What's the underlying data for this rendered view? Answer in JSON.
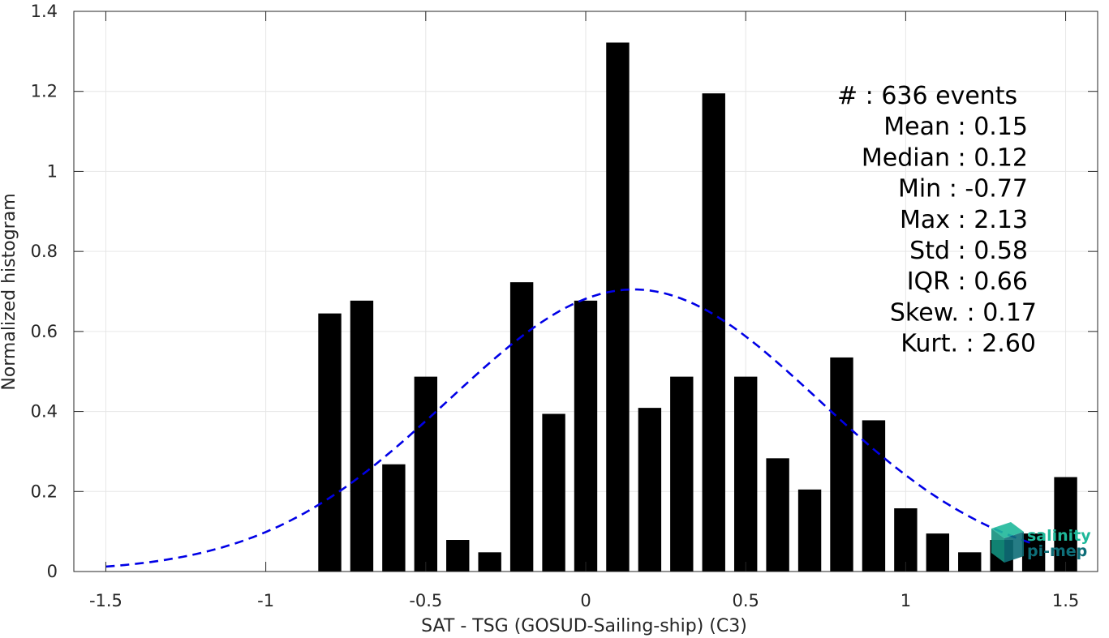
{
  "chart_data": {
    "type": "bar",
    "xlabel": "SAT - TSG (GOSUD-Sailing-ship) (C3)",
    "ylabel": "Normalized histogram",
    "xlim": [
      -1.6,
      1.6
    ],
    "ylim": [
      0,
      1.4
    ],
    "xticks": [
      -1.5,
      -1,
      -0.5,
      0,
      0.5,
      1,
      1.5
    ],
    "xtick_labels": [
      "-1.5",
      "-1",
      "-0.5",
      "0",
      "0.5",
      "1",
      "1.5"
    ],
    "yticks": [
      0,
      0.2,
      0.4,
      0.6,
      0.8,
      1,
      1.2,
      1.4
    ],
    "ytick_labels": [
      "0",
      "0.2",
      "0.4",
      "0.6",
      "0.8",
      "1",
      "1.2",
      "1.4"
    ],
    "grid": true,
    "bar_color": "#000000",
    "bar_width": 0.072,
    "x": [
      -0.8,
      -0.7,
      -0.6,
      -0.5,
      -0.4,
      -0.3,
      -0.2,
      -0.1,
      0.0,
      0.1,
      0.2,
      0.3,
      0.4,
      0.5,
      0.6,
      0.7,
      0.8,
      0.9,
      1.0,
      1.1,
      1.2,
      1.3,
      1.4,
      1.5
    ],
    "values": [
      0.645,
      0.677,
      0.268,
      0.487,
      0.079,
      0.048,
      0.723,
      0.394,
      0.677,
      1.322,
      0.409,
      0.487,
      1.195,
      0.487,
      0.283,
      0.205,
      0.535,
      0.378,
      0.158,
      0.095,
      0.048,
      0.079,
      0.095,
      0.236
    ],
    "fit_curve": {
      "type": "normal",
      "mean": 0.15,
      "std": 0.58,
      "peak": 0.705,
      "color": "#0000e6",
      "style": "dashed",
      "x_range": [
        -1.5,
        1.4
      ]
    },
    "stats": [
      {
        "label": "#  : 636 events",
        "align": "left"
      },
      {
        "label": "Mean : 0.15",
        "align": "right"
      },
      {
        "label": "Median : 0.12",
        "align": "right"
      },
      {
        "label": "Min : -0.77",
        "align": "right"
      },
      {
        "label": "Max : 2.13",
        "align": "right"
      },
      {
        "label": "Std : 0.58",
        "align": "right"
      },
      {
        "label": "IQR : 0.66",
        "align": "right"
      },
      {
        "label": "Skew. : 0.17",
        "align": "right"
      },
      {
        "label": "Kurt. : 2.60",
        "align": "right"
      }
    ]
  },
  "logo": {
    "line1": "salinity",
    "line2": "pi-mep",
    "color1": "#1fb89a",
    "color2": "#0e6e78"
  }
}
